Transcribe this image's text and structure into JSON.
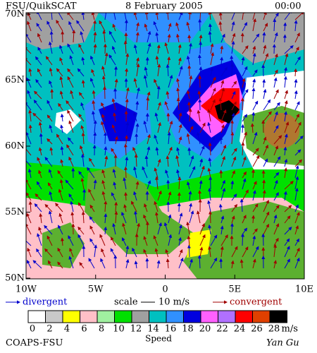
{
  "header": {
    "title": "FSU/QuikSCAT",
    "date": "8 February 2005",
    "time": "00:00"
  },
  "axes": {
    "lat_labels": [
      "70N",
      "65N",
      "60N",
      "55N",
      "50N"
    ],
    "lon_labels": [
      "10W",
      "5W",
      "0",
      "5E",
      "10E"
    ]
  },
  "legend": {
    "divergent": "divergent",
    "scale": "scale",
    "scale_value": "10 m/s",
    "convergent": "convergent"
  },
  "colorbar": {
    "labels": [
      "0",
      "2",
      "4",
      "6",
      "8",
      "10",
      "12",
      "14",
      "16",
      "18",
      "20",
      "22",
      "24",
      "26",
      "28"
    ],
    "colors": [
      "#ffffff",
      "#c8c8c8",
      "#ffff00",
      "#ffc0c8",
      "#a0f0a0",
      "#00e000",
      "#a0a0a0",
      "#00c0c0",
      "#3090ff",
      "#0000e0",
      "#ff60ff",
      "#b070ff",
      "#ff0000",
      "#e04000",
      "#000000"
    ],
    "unit": "m/s",
    "title": "Speed"
  },
  "footer": {
    "left": "COAPS-FSU",
    "right": "Yan Gu"
  }
}
